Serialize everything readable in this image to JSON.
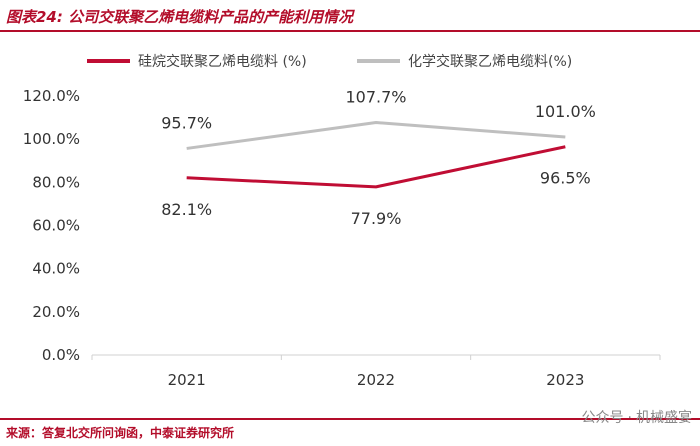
{
  "header": {
    "title": "图表24: 公司交联聚乙烯电缆料产品的产能利用情况"
  },
  "footer": {
    "source": "来源：答复北交所问询函，中泰证券研究所",
    "watermark_prefix": "公众号",
    "watermark_name": "机械盛宴"
  },
  "colors": {
    "accent": "#b30d2a",
    "series1": "#c00d34",
    "series2": "#bfbfbf"
  },
  "chart_data": {
    "type": "line",
    "categories": [
      "2021",
      "2022",
      "2023"
    ],
    "series": [
      {
        "name": "硅烷交联聚乙烯电缆料 (%)",
        "values": [
          82.1,
          77.9,
          96.5
        ],
        "labels": [
          "82.1%",
          "77.9%",
          "96.5%"
        ]
      },
      {
        "name": "化学交联聚乙烯电缆料(%)",
        "values": [
          95.7,
          107.7,
          101.0
        ],
        "labels": [
          "95.7%",
          "107.7%",
          "101.0%"
        ]
      }
    ],
    "yticks": [
      "0.0%",
      "20.0%",
      "40.0%",
      "60.0%",
      "80.0%",
      "100.0%",
      "120.0%"
    ],
    "ylim": [
      0,
      120
    ],
    "legend_position": "top",
    "grid": false
  }
}
